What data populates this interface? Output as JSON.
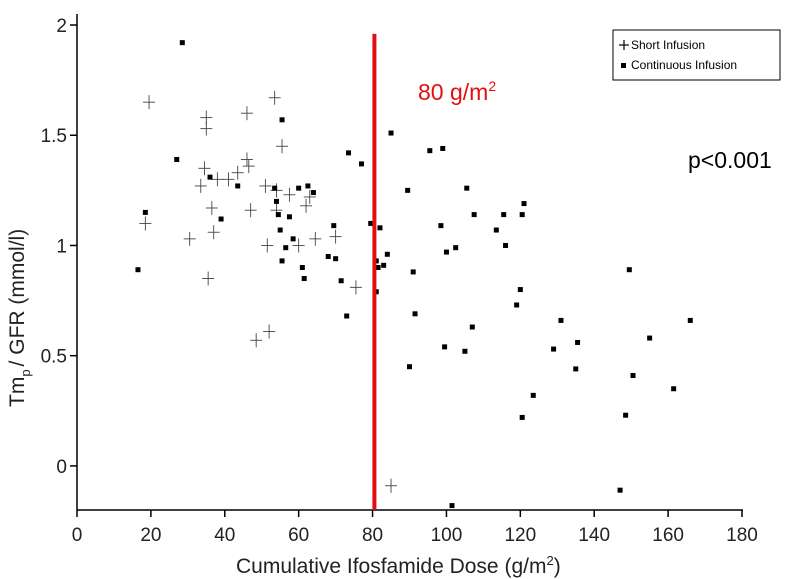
{
  "chart_data": {
    "type": "scatter",
    "xlabel": "Cumulative Ifosfamide Dose (g/m",
    "xlabel_sup": "2",
    "xlabel_end": ")",
    "ylabel": "Tm",
    "ylabel_sub": "p",
    "ylabel_end": "/ GFR (mmol/l)",
    "xlim": [
      0,
      180
    ],
    "ylim": [
      -0.2,
      2.05
    ],
    "x_ticks": [
      0,
      20,
      40,
      60,
      80,
      100,
      120,
      140,
      160,
      180
    ],
    "y_ticks": [
      0,
      0.5,
      1,
      1.5,
      2
    ],
    "y_tick_labels": [
      "0",
      "0.5",
      "1",
      "1.5",
      "2"
    ],
    "grid": false,
    "legend_position": "top-right",
    "series": [
      {
        "name": "Short Infusion",
        "marker": "cross",
        "color": "#444444",
        "points": [
          [
            19.5,
            1.65
          ],
          [
            18.5,
            1.1
          ],
          [
            30.5,
            1.03
          ],
          [
            33.5,
            1.27
          ],
          [
            34.5,
            1.35
          ],
          [
            35,
            1.58
          ],
          [
            35,
            1.53
          ],
          [
            35.5,
            0.85
          ],
          [
            36.5,
            1.17
          ],
          [
            37,
            1.06
          ],
          [
            38,
            1.3
          ],
          [
            41,
            1.3
          ],
          [
            43.5,
            1.33
          ],
          [
            46,
            1.6
          ],
          [
            46,
            1.39
          ],
          [
            46.5,
            1.36
          ],
          [
            47,
            1.16
          ],
          [
            48.5,
            0.57
          ],
          [
            51,
            1.27
          ],
          [
            51.5,
            1.0
          ],
          [
            52,
            0.61
          ],
          [
            53.5,
            1.67
          ],
          [
            54,
            1.25
          ],
          [
            54,
            1.16
          ],
          [
            55.5,
            1.45
          ],
          [
            57.5,
            1.23
          ],
          [
            60,
            1.0
          ],
          [
            62,
            1.18
          ],
          [
            63,
            1.22
          ],
          [
            64.5,
            1.03
          ],
          [
            70,
            1.04
          ],
          [
            75.5,
            0.81
          ],
          [
            85,
            -0.09
          ]
        ]
      },
      {
        "name": "Continuous Infusion",
        "marker": "square",
        "color": "#000000",
        "points": [
          [
            16.5,
            0.89
          ],
          [
            18.5,
            1.15
          ],
          [
            27,
            1.39
          ],
          [
            28.5,
            1.92
          ],
          [
            36,
            1.31
          ],
          [
            39,
            1.12
          ],
          [
            43.5,
            1.27
          ],
          [
            53.5,
            1.26
          ],
          [
            54,
            1.2
          ],
          [
            54.5,
            1.14
          ],
          [
            55,
            1.07
          ],
          [
            55.5,
            1.57
          ],
          [
            55.5,
            0.93
          ],
          [
            56.5,
            0.99
          ],
          [
            57.5,
            1.13
          ],
          [
            58.5,
            1.03
          ],
          [
            60,
            1.26
          ],
          [
            61,
            0.9
          ],
          [
            61.5,
            0.85
          ],
          [
            62.5,
            1.27
          ],
          [
            64,
            1.24
          ],
          [
            68,
            0.95
          ],
          [
            69.5,
            1.09
          ],
          [
            70,
            0.94
          ],
          [
            71.5,
            0.84
          ],
          [
            73,
            0.68
          ],
          [
            73.5,
            1.42
          ],
          [
            77,
            1.37
          ],
          [
            79.5,
            1.1
          ],
          [
            81,
            0.93
          ],
          [
            81,
            0.79
          ],
          [
            81.5,
            0.9
          ],
          [
            82,
            1.08
          ],
          [
            83,
            0.91
          ],
          [
            84,
            0.96
          ],
          [
            85,
            1.51
          ],
          [
            95.5,
            1.43
          ],
          [
            89.5,
            1.25
          ],
          [
            90,
            0.45
          ],
          [
            91,
            0.88
          ],
          [
            91.5,
            0.69
          ],
          [
            98.5,
            1.09
          ],
          [
            99,
            1.44
          ],
          [
            99.5,
            0.54
          ],
          [
            100,
            0.97
          ],
          [
            101.5,
            -0.18
          ],
          [
            102.5,
            0.99
          ],
          [
            105,
            0.52
          ],
          [
            105.5,
            1.26
          ],
          [
            107,
            0.63
          ],
          [
            107.5,
            1.14
          ],
          [
            113.5,
            1.07
          ],
          [
            115.5,
            1.14
          ],
          [
            116,
            1.0
          ],
          [
            119,
            0.73
          ],
          [
            120,
            0.8
          ],
          [
            120.5,
            0.22
          ],
          [
            120.5,
            1.14
          ],
          [
            121,
            1.19
          ],
          [
            123.5,
            0.32
          ],
          [
            129,
            0.53
          ],
          [
            131,
            0.66
          ],
          [
            135,
            0.44
          ],
          [
            135.5,
            0.56
          ],
          [
            147,
            -0.11
          ],
          [
            148.5,
            0.23
          ],
          [
            149.5,
            0.89
          ],
          [
            150.5,
            0.41
          ],
          [
            155,
            0.58
          ],
          [
            161.5,
            0.35
          ],
          [
            166,
            0.66
          ]
        ]
      }
    ],
    "reference_line": {
      "x": 80.5,
      "y_from": -0.2,
      "y_to": 1.96,
      "color": "#e01010"
    },
    "annotations": {
      "threshold_label": "80 g/m",
      "threshold_sup": "2",
      "p_value": "p<0.001"
    }
  }
}
